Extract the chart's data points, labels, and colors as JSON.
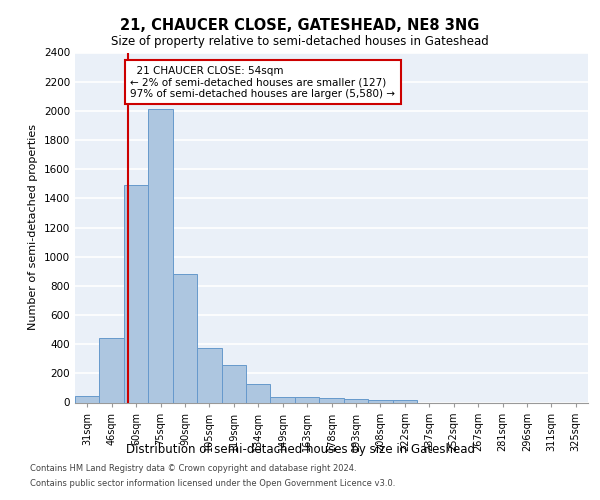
{
  "title": "21, CHAUCER CLOSE, GATESHEAD, NE8 3NG",
  "subtitle": "Size of property relative to semi-detached houses in Gateshead",
  "xlabel": "Distribution of semi-detached houses by size in Gateshead",
  "ylabel": "Number of semi-detached properties",
  "bar_color": "#adc6e0",
  "bar_edge_color": "#6699cc",
  "categories": [
    "31sqm",
    "46sqm",
    "60sqm",
    "75sqm",
    "90sqm",
    "105sqm",
    "119sqm",
    "134sqm",
    "149sqm",
    "163sqm",
    "178sqm",
    "193sqm",
    "208sqm",
    "222sqm",
    "237sqm",
    "252sqm",
    "267sqm",
    "281sqm",
    "296sqm",
    "311sqm",
    "325sqm"
  ],
  "values": [
    45,
    440,
    1490,
    2010,
    880,
    375,
    255,
    130,
    40,
    40,
    30,
    25,
    20,
    15,
    0,
    0,
    0,
    0,
    0,
    0,
    0
  ],
  "ylim": [
    0,
    2400
  ],
  "yticks": [
    0,
    200,
    400,
    600,
    800,
    1000,
    1200,
    1400,
    1600,
    1800,
    2000,
    2200,
    2400
  ],
  "property_label": "21 CHAUCER CLOSE: 54sqm",
  "pct_smaller": 2,
  "n_smaller": 127,
  "pct_larger": 97,
  "n_larger": 5580,
  "vline_pos": 1.67,
  "bg_color": "#eaf0f8",
  "grid_color": "#ffffff",
  "footer_line1": "Contains HM Land Registry data © Crown copyright and database right 2024.",
  "footer_line2": "Contains public sector information licensed under the Open Government Licence v3.0."
}
